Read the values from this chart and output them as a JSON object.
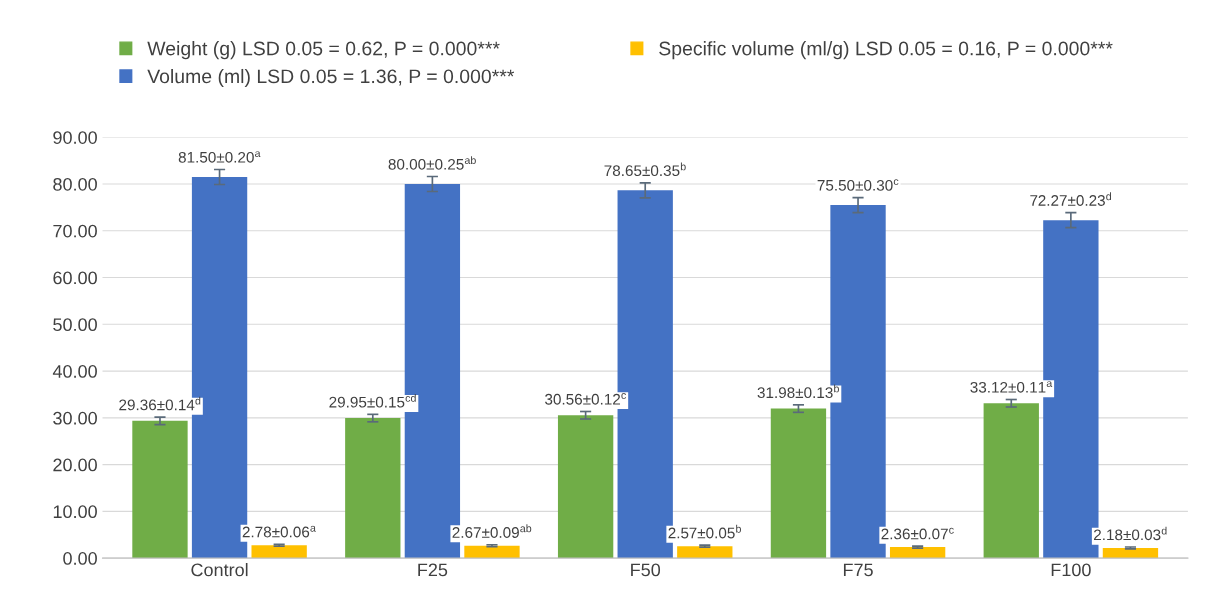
{
  "chart_data": {
    "type": "bar",
    "categories": [
      "Control",
      "F25",
      "F50",
      "F75",
      "F100"
    ],
    "series": [
      {
        "name": "Weight (g) LSD 0.05 = 0.62, P = 0.000***",
        "color": "#70ad47",
        "values": [
          29.36,
          29.95,
          30.56,
          31.98,
          33.12
        ],
        "errors": [
          0.8,
          0.8,
          0.8,
          0.8,
          0.8
        ],
        "value_labels": [
          "29.36±0.14$^{d}$",
          "29.95±0.15$^{cd}$",
          "30.56±0.12$^{c}$",
          "31.98±0.13$^{b}$",
          "33.12±0.11$^{a}$"
        ]
      },
      {
        "name": "Volume (ml) LSD 0.05 = 1.36, P = 0.000***",
        "color": "#4472c4",
        "values": [
          81.5,
          80.0,
          78.65,
          75.5,
          72.27
        ],
        "errors": [
          1.6,
          1.6,
          1.6,
          1.6,
          1.6
        ],
        "value_labels": [
          "81.50±0.20$^{a}$",
          "80.00±0.25$^{ab}$",
          "78.65±0.35$^{b}$",
          "75.50±0.30$^{c}$",
          "72.27±0.23$^{d}$"
        ]
      },
      {
        "name": "Specific volume (ml/g) LSD 0.05 = 0.16, P = 0.000***",
        "color": "#ffc000",
        "values": [
          2.78,
          2.67,
          2.57,
          2.36,
          2.18
        ],
        "errors": [
          0.2,
          0.2,
          0.2,
          0.2,
          0.2
        ],
        "value_labels": [
          "2.78±0.06$^{a}$",
          "2.67±0.09$^{ab}$",
          "2.57±0.05$^{b}$",
          "2.36±0.07$^{c}$",
          "2.18±0.03$^{d}$"
        ]
      }
    ],
    "ylim": [
      0,
      90
    ],
    "yticks": [
      {
        "value": 0,
        "label": "0.00"
      },
      {
        "value": 10,
        "label": "10.00"
      },
      {
        "value": 20,
        "label": "20.00"
      },
      {
        "value": 30,
        "label": "30.00"
      },
      {
        "value": 40,
        "label": "40.00"
      },
      {
        "value": 50,
        "label": "50.00"
      },
      {
        "value": 60,
        "label": "60.00"
      },
      {
        "value": 70,
        "label": "70.00"
      },
      {
        "value": 80,
        "label": "80.00"
      },
      {
        "value": 90,
        "label": "90.00"
      }
    ],
    "grid": "y",
    "legend": "top"
  }
}
